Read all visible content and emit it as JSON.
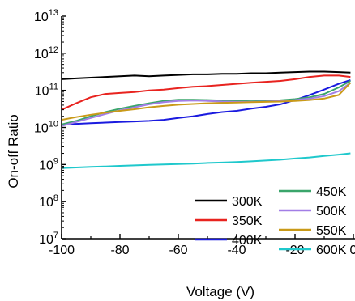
{
  "chart_data": {
    "type": "line",
    "xlabel": "Voltage (V)",
    "ylabel": "On-off Ratio",
    "xlim": [
      -100,
      0
    ],
    "ylim": [
      10000000,
      10000000000000
    ],
    "yscale": "log",
    "x_ticks": [
      -100,
      -80,
      -60,
      -40,
      -20,
      0
    ],
    "x_tick_labels": [
      "-100",
      "-80",
      "-60",
      "-40",
      "-20",
      "0"
    ],
    "y_ticks": [
      {
        "value": 10000000,
        "base": "10",
        "exp": "7"
      },
      {
        "value": 100000000,
        "base": "10",
        "exp": "8"
      },
      {
        "value": 1000000000,
        "base": "10",
        "exp": "9"
      },
      {
        "value": 10000000000,
        "base": "10",
        "exp": "10"
      },
      {
        "value": 100000000000,
        "base": "10",
        "exp": "11"
      },
      {
        "value": 1000000000000,
        "base": "10",
        "exp": "12"
      },
      {
        "value": 10000000000000,
        "base": "10",
        "exp": "13"
      }
    ],
    "grid": false,
    "legend_position": "bottom-right",
    "x": [
      -100,
      -95,
      -90,
      -85,
      -80,
      -75,
      -70,
      -65,
      -60,
      -55,
      -50,
      -45,
      -40,
      -35,
      -30,
      -25,
      -20,
      -15,
      -10,
      -5,
      -1
    ],
    "series": [
      {
        "name": "300K",
        "color": "#000000",
        "values": [
          200000000000.0,
          210000000000.0,
          220000000000.0,
          230000000000.0,
          240000000000.0,
          250000000000.0,
          240000000000.0,
          250000000000.0,
          260000000000.0,
          270000000000.0,
          270000000000.0,
          280000000000.0,
          280000000000.0,
          290000000000.0,
          290000000000.0,
          300000000000.0,
          310000000000.0,
          320000000000.0,
          320000000000.0,
          310000000000.0,
          300000000000.0
        ]
      },
      {
        "name": "350K",
        "color": "#e8231f",
        "values": [
          30000000000.0,
          45000000000.0,
          65000000000.0,
          80000000000.0,
          85000000000.0,
          90000000000.0,
          100000000000.0,
          105000000000.0,
          115000000000.0,
          125000000000.0,
          130000000000.0,
          140000000000.0,
          150000000000.0,
          160000000000.0,
          170000000000.0,
          180000000000.0,
          200000000000.0,
          230000000000.0,
          250000000000.0,
          250000000000.0,
          230000000000.0
        ]
      },
      {
        "name": "400K",
        "color": "#1a1adf",
        "values": [
          12000000000.0,
          12500000000.0,
          13000000000.0,
          13500000000.0,
          14000000000.0,
          14500000000.0,
          15000000000.0,
          16000000000.0,
          18000000000.0,
          20000000000.0,
          23000000000.0,
          26000000000.0,
          28000000000.0,
          32000000000.0,
          36000000000.0,
          42000000000.0,
          55000000000.0,
          75000000000.0,
          105000000000.0,
          150000000000.0,
          190000000000.0
        ]
      },
      {
        "name": "450K",
        "color": "#3aa56b",
        "values": [
          12000000000.0,
          15000000000.0,
          20000000000.0,
          26000000000.0,
          32000000000.0,
          38000000000.0,
          45000000000.0,
          52000000000.0,
          56000000000.0,
          56000000000.0,
          55000000000.0,
          53000000000.0,
          52000000000.0,
          51000000000.0,
          52000000000.0,
          54000000000.0,
          58000000000.0,
          65000000000.0,
          80000000000.0,
          120000000000.0,
          180000000000.0
        ]
      },
      {
        "name": "500K",
        "color": "#a27ee6",
        "values": [
          11000000000.0,
          14000000000.0,
          18000000000.0,
          23000000000.0,
          29000000000.0,
          35000000000.0,
          42000000000.0,
          48000000000.0,
          52000000000.0,
          53000000000.0,
          52000000000.0,
          50000000000.0,
          49000000000.0,
          49000000000.0,
          50000000000.0,
          52000000000.0,
          55000000000.0,
          60000000000.0,
          70000000000.0,
          95000000000.0,
          160000000000.0
        ]
      },
      {
        "name": "550K",
        "color": "#c99a18",
        "values": [
          16000000000.0,
          19000000000.0,
          22000000000.0,
          25000000000.0,
          28000000000.0,
          31000000000.0,
          35000000000.0,
          38000000000.0,
          41000000000.0,
          43000000000.0,
          45000000000.0,
          46000000000.0,
          47000000000.0,
          48000000000.0,
          49000000000.0,
          50000000000.0,
          52000000000.0,
          55000000000.0,
          60000000000.0,
          75000000000.0,
          160000000000.0
        ]
      },
      {
        "name": "600K",
        "color": "#1fc8cc",
        "values": [
          800000000.0,
          830000000.0,
          860000000.0,
          890000000.0,
          920000000.0,
          950000000.0,
          980000000.0,
          1000000000.0,
          1030000000.0,
          1060000000.0,
          1100000000.0,
          1130000000.0,
          1170000000.0,
          1220000000.0,
          1280000000.0,
          1350000000.0,
          1450000000.0,
          1550000000.0,
          1700000000.0,
          1850000000.0,
          2000000000.0
        ]
      }
    ]
  }
}
